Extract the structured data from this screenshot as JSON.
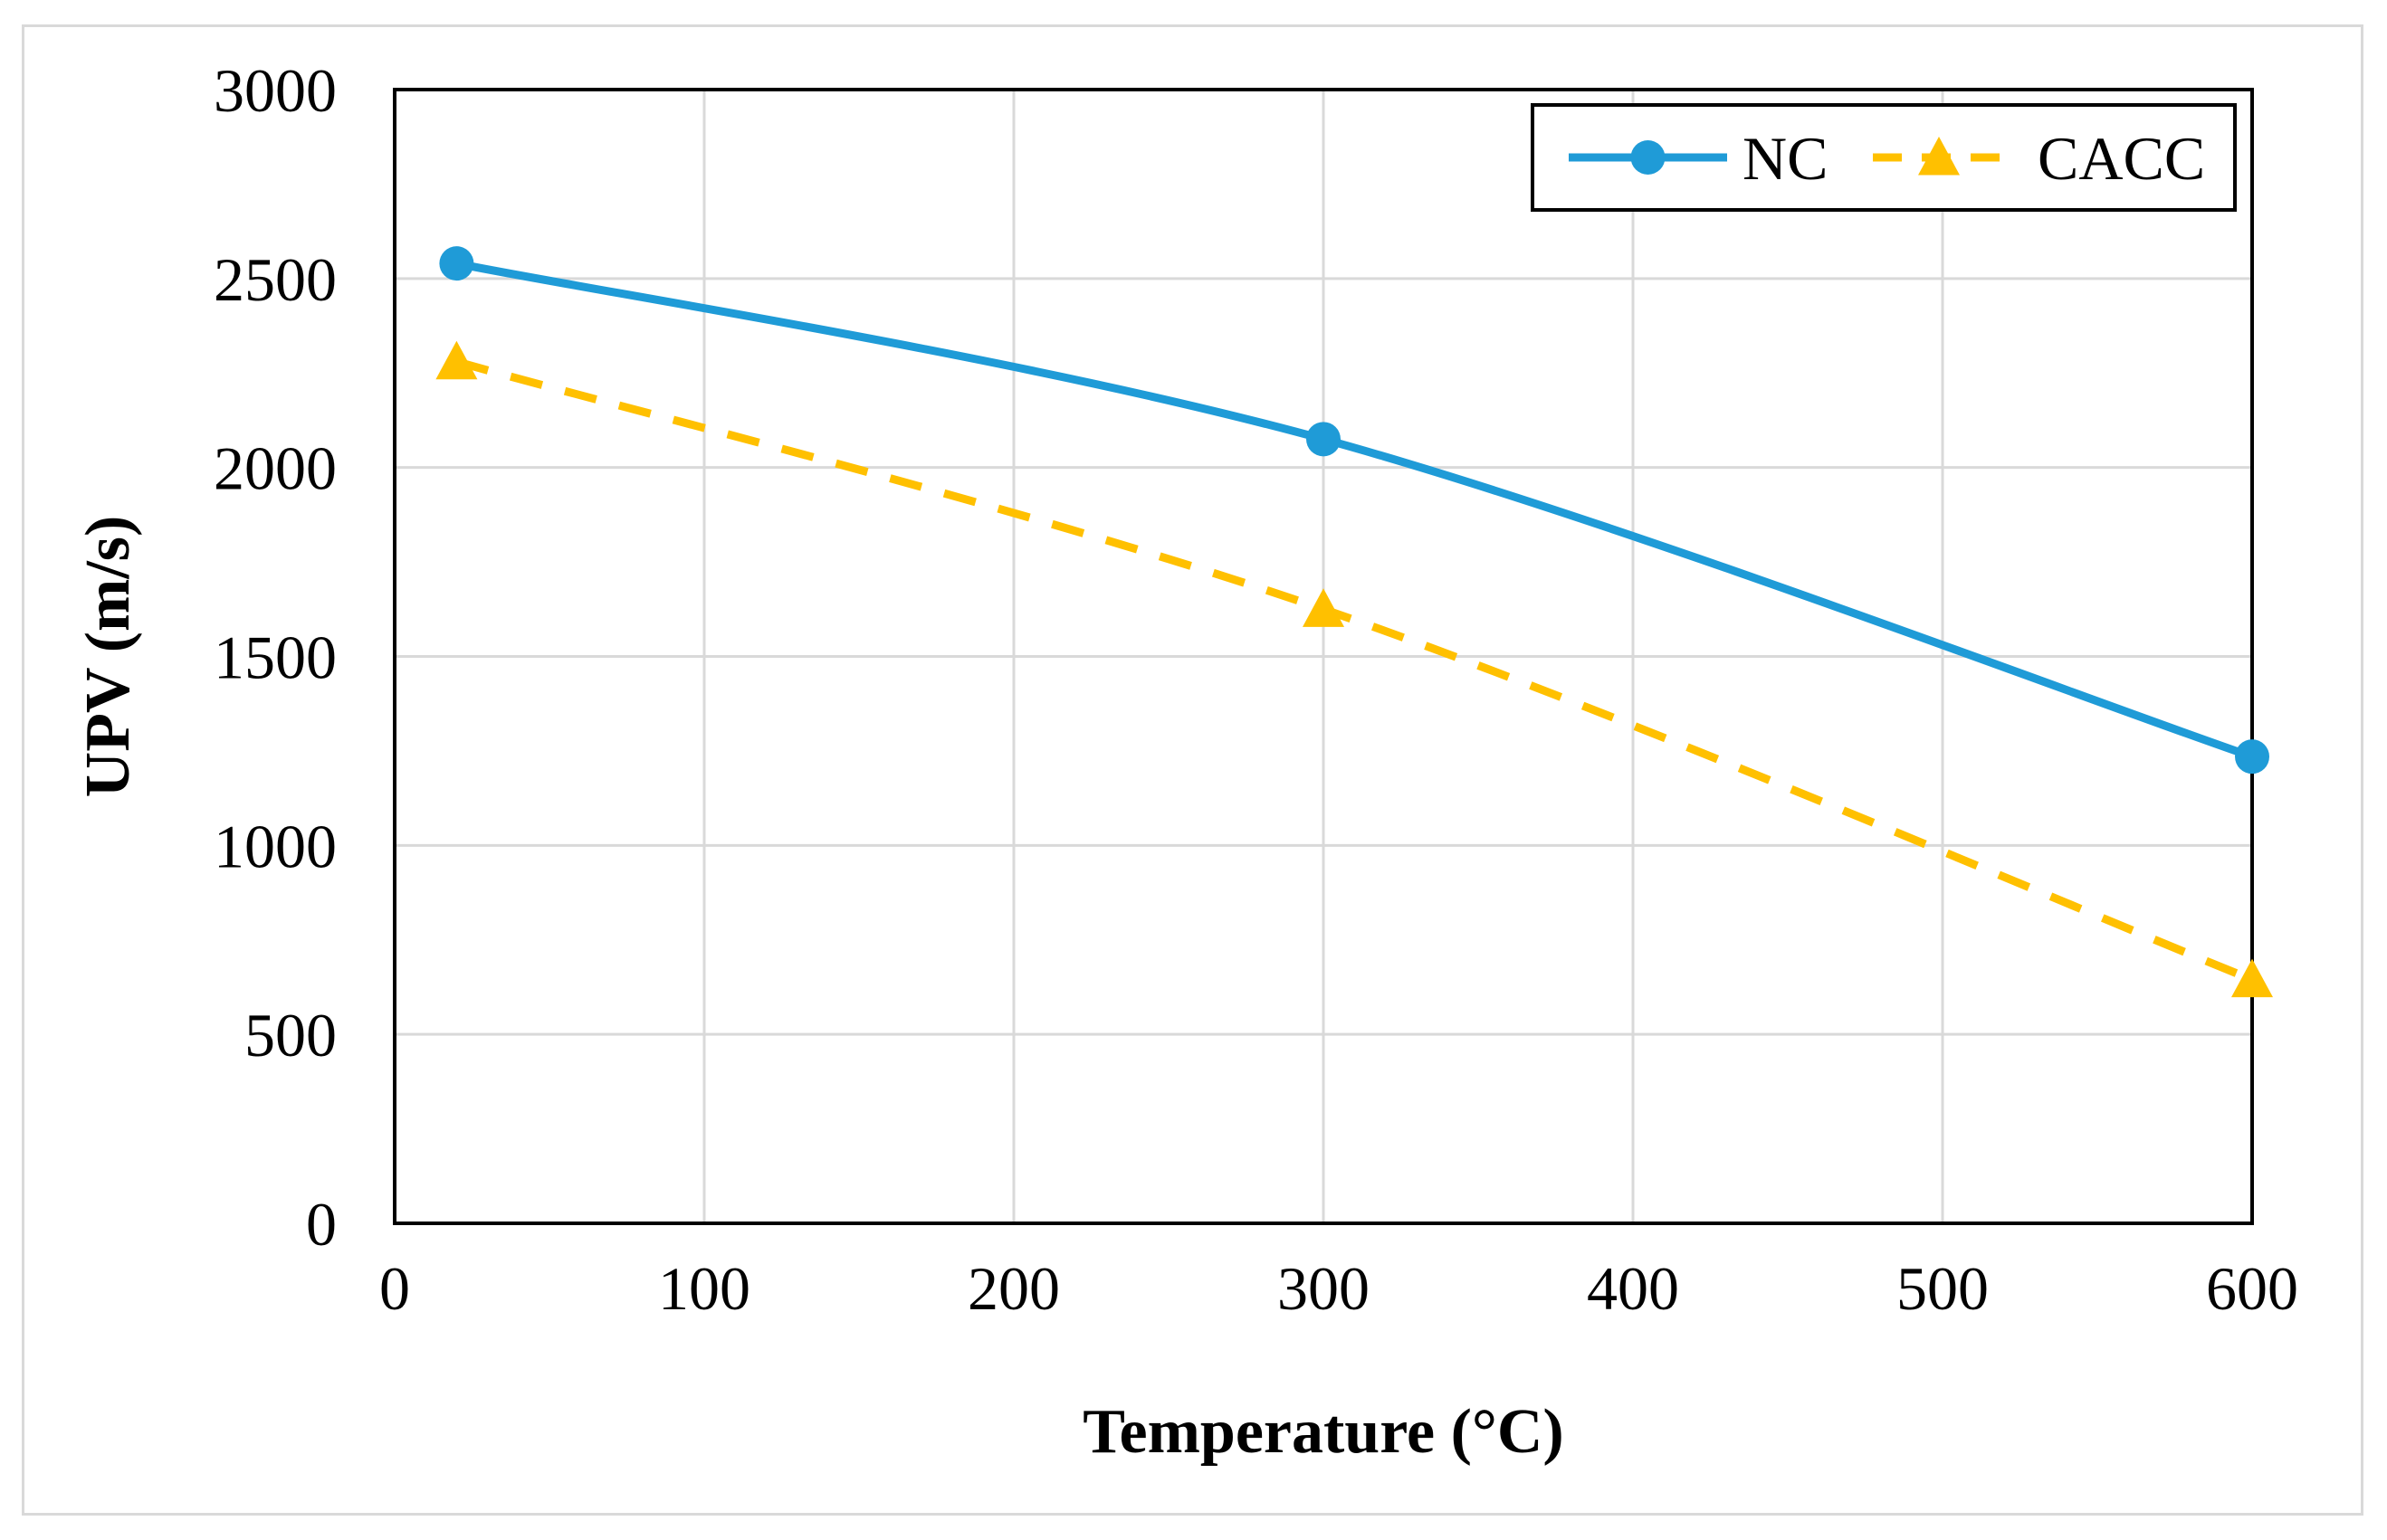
{
  "chart_data": {
    "type": "line",
    "title": "",
    "xlabel": "Temperature (°C)",
    "ylabel": "UPV (m/s)",
    "xlim": [
      0,
      600
    ],
    "ylim": [
      0,
      3000
    ],
    "x_ticks": [
      0,
      100,
      200,
      300,
      400,
      500,
      600
    ],
    "y_ticks": [
      0,
      500,
      1000,
      1500,
      2000,
      2500,
      3000
    ],
    "grid": true,
    "legend_position": "top-right",
    "series": [
      {
        "name": "NC",
        "x": [
          20,
          300,
          600
        ],
        "values": [
          2540,
          2075,
          1235
        ],
        "color": "#1f9bd7",
        "line_style": "solid",
        "marker": "circle",
        "smooth": true
      },
      {
        "name": "CACC",
        "x": [
          20,
          300,
          600
        ],
        "values": [
          2280,
          1625,
          645
        ],
        "color": "#ffc000",
        "line_style": "dashed",
        "marker": "triangle",
        "smooth": true
      }
    ]
  }
}
